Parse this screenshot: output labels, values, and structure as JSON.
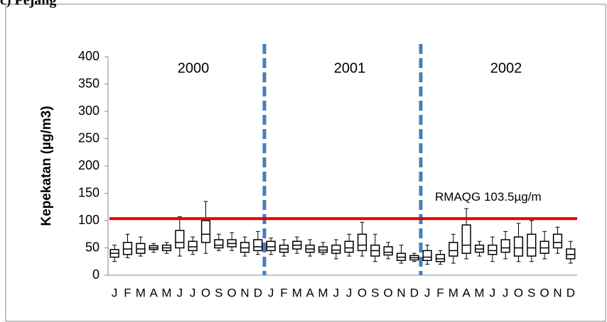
{
  "chart_data": {
    "type": "box",
    "title": "c) Pejang",
    "y_label": "Kepekatan (µg/m3)",
    "years": [
      "2000",
      "2001",
      "2002"
    ],
    "categories": [
      "J",
      "F",
      "M",
      "A",
      "M",
      "J",
      "J",
      "O",
      "S",
      "O",
      "N",
      "D",
      "J",
      "F",
      "M",
      "A",
      "M",
      "J",
      "J",
      "O",
      "S",
      "O",
      "N",
      "D",
      "J",
      "F",
      "M",
      "A",
      "M",
      "J",
      "J",
      "O",
      "S",
      "O",
      "N",
      "D"
    ],
    "min": [
      25,
      32,
      35,
      42,
      40,
      35,
      38,
      40,
      45,
      45,
      35,
      38,
      38,
      35,
      40,
      35,
      38,
      30,
      35,
      35,
      25,
      30,
      22,
      25,
      20,
      20,
      22,
      30,
      35,
      25,
      30,
      25,
      25,
      30,
      40,
      22
    ],
    "q1": [
      33,
      38,
      40,
      47,
      45,
      50,
      45,
      60,
      50,
      52,
      42,
      45,
      45,
      42,
      48,
      42,
      42,
      40,
      42,
      45,
      35,
      37,
      27,
      28,
      27,
      25,
      35,
      40,
      42,
      38,
      42,
      35,
      35,
      40,
      50,
      30
    ],
    "median": [
      40,
      48,
      48,
      50,
      50,
      60,
      52,
      75,
      55,
      58,
      50,
      52,
      52,
      48,
      55,
      48,
      46,
      46,
      50,
      55,
      45,
      42,
      33,
      32,
      33,
      30,
      45,
      55,
      48,
      45,
      50,
      50,
      50,
      50,
      60,
      38
    ],
    "q3": [
      47,
      60,
      58,
      54,
      55,
      82,
      62,
      100,
      65,
      65,
      60,
      65,
      62,
      55,
      62,
      55,
      52,
      55,
      62,
      75,
      55,
      52,
      40,
      36,
      45,
      38,
      60,
      92,
      55,
      55,
      65,
      70,
      75,
      62,
      75,
      48
    ],
    "max": [
      55,
      75,
      70,
      58,
      60,
      107,
      70,
      135,
      75,
      78,
      70,
      80,
      68,
      65,
      70,
      65,
      60,
      65,
      75,
      97,
      75,
      60,
      55,
      40,
      55,
      45,
      75,
      122,
      62,
      70,
      80,
      95,
      100,
      80,
      88,
      62
    ],
    "color": "#000000",
    "divider_color": "#4a7ebb",
    "reference_line": {
      "value": 103.5,
      "label": "RMAQG 103.5µg/m",
      "color": "#e00000"
    },
    "ylim": [
      0,
      400
    ],
    "yticks": [
      0,
      50,
      100,
      150,
      200,
      250,
      300,
      350,
      400
    ]
  }
}
